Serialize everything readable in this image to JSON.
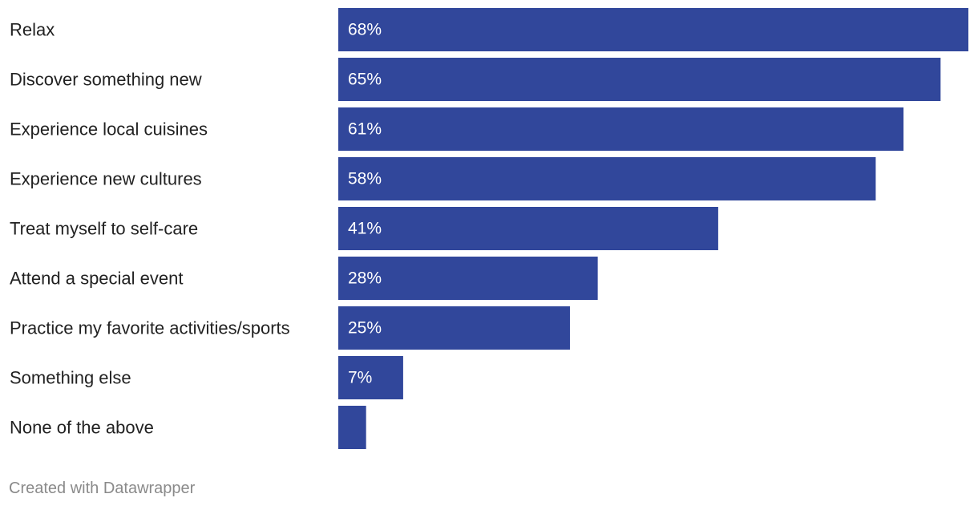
{
  "chart_data": {
    "type": "bar",
    "orientation": "horizontal",
    "categories": [
      "Relax",
      "Discover something new",
      "Experience local cuisines",
      "Experience new cultures",
      "Treat myself to self-care",
      "Attend a special event",
      "Practice my favorite activities/sports",
      "Something else",
      "None of the above"
    ],
    "values": [
      68,
      65,
      61,
      58,
      41,
      28,
      25,
      7,
      3
    ],
    "value_labels": [
      "68%",
      "65%",
      "61%",
      "58%",
      "41%",
      "28%",
      "25%",
      "7%",
      ""
    ],
    "unit": "%",
    "xlim": [
      0,
      68
    ],
    "grid": false,
    "legend": "none",
    "bar_color": "#31479b"
  },
  "footer": {
    "credit": "Created with Datawrapper"
  }
}
